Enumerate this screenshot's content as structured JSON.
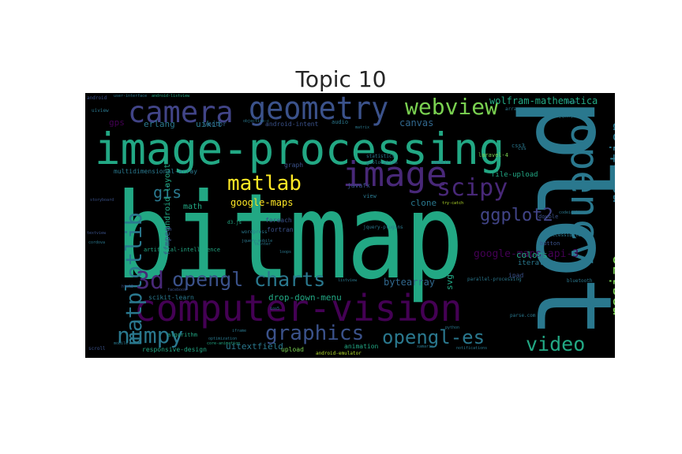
{
  "title": "Topic 10",
  "colors": {
    "background": "#000000",
    "palette": [
      "#440154",
      "#482878",
      "#3e4989",
      "#31688e",
      "#26828e",
      "#1f9e89",
      "#35b779",
      "#6ece58",
      "#b5de2b",
      "#fde725"
    ]
  },
  "words": [
    {
      "text": "bitmap",
      "color": "#22a884"
    },
    {
      "text": "plot",
      "color": "#2a788e"
    },
    {
      "text": "image-processing",
      "color": "#22a884"
    },
    {
      "text": "computer-vision",
      "color": "#440154"
    },
    {
      "text": "opencv",
      "color": "#2a788e"
    },
    {
      "text": "geometry",
      "color": "#3b528b"
    },
    {
      "text": "image",
      "color": "#482878"
    },
    {
      "text": "camera",
      "color": "#414487"
    },
    {
      "text": "matplotlib",
      "color": "#2a788e"
    },
    {
      "text": "webview",
      "color": "#7ad151"
    },
    {
      "text": "scipy",
      "color": "#482878"
    },
    {
      "text": "matlab",
      "color": "#fde725"
    },
    {
      "text": "3d",
      "color": "#482878"
    },
    {
      "text": "opengl",
      "color": "#3b528b"
    },
    {
      "text": "charts",
      "color": "#2a788e"
    },
    {
      "text": "graphics",
      "color": "#3b528b"
    },
    {
      "text": "opengl-es",
      "color": "#2a788e"
    },
    {
      "text": "numpy",
      "color": "#2a788e"
    },
    {
      "text": "video",
      "color": "#22a884"
    },
    {
      "text": "resize",
      "color": "#7ad151"
    },
    {
      "text": "rotation",
      "color": "#2a788e"
    },
    {
      "text": "ggplot2",
      "color": "#414487"
    },
    {
      "text": "gis",
      "color": "#2a788e"
    },
    {
      "text": "google-maps",
      "color": "#fde725"
    },
    {
      "text": "google-maps-api-3",
      "color": "#440154"
    },
    {
      "text": "wolfram-mathematica",
      "color": "#22a884"
    },
    {
      "text": "bytearray",
      "color": "#31688e"
    },
    {
      "text": "drop-down-menu",
      "color": "#22a884"
    },
    {
      "text": "uitextfield",
      "color": "#2a788e"
    },
    {
      "text": "svg",
      "color": "#22a884"
    },
    {
      "text": "colors",
      "color": "#22a884"
    },
    {
      "text": "erlang",
      "color": "#2a788e"
    },
    {
      "text": "uikit",
      "color": "#2a788e"
    },
    {
      "text": "canvas",
      "color": "#31688e"
    },
    {
      "text": "gps",
      "color": "#440154"
    },
    {
      "text": "vector",
      "color": "#31688e"
    },
    {
      "text": "android-intent",
      "color": "#3b528b"
    },
    {
      "text": "android-layout",
      "color": "#22a884"
    },
    {
      "text": "multidimensional-array",
      "color": "#2a788e"
    },
    {
      "text": "math",
      "color": "#22a884"
    },
    {
      "text": "clone",
      "color": "#2a788e"
    },
    {
      "text": "ffmpeg",
      "color": "#3b528b"
    },
    {
      "text": "artificial-intelligence",
      "color": "#22a884"
    },
    {
      "text": "responsive-design",
      "color": "#22a884"
    },
    {
      "text": "scikit-learn",
      "color": "#2a788e"
    },
    {
      "text": "upload",
      "color": "#7ad151"
    },
    {
      "text": "animation",
      "color": "#22a884"
    },
    {
      "text": "android-emulator",
      "color": "#b5de2b"
    },
    {
      "text": "file-upload",
      "color": "#22a884"
    },
    {
      "text": "iteration",
      "color": "#2a788e"
    },
    {
      "text": "layout",
      "color": "#2a788e"
    },
    {
      "text": "audio",
      "color": "#2a788e"
    },
    {
      "text": "graph",
      "color": "#3b528b"
    },
    {
      "text": "foreach",
      "color": "#3b528b"
    },
    {
      "text": "ipad",
      "color": "#3b528b"
    },
    {
      "text": "view",
      "color": "#2a788e"
    },
    {
      "text": "javafx",
      "color": "#3b528b"
    },
    {
      "text": "algorithm",
      "color": "#22a884"
    },
    {
      "text": "android",
      "color": "#3b528b"
    },
    {
      "text": "uiview",
      "color": "#2a788e"
    },
    {
      "text": "user-interface",
      "color": "#2a788e"
    },
    {
      "text": "android-listview",
      "color": "#22a884"
    },
    {
      "text": "webkit",
      "color": "#2a788e"
    },
    {
      "text": "css3",
      "color": "#2a788e"
    },
    {
      "text": "wordpress",
      "color": "#2a788e"
    },
    {
      "text": "fortran",
      "color": "#3b528b"
    },
    {
      "text": "jquery-ui",
      "color": "#2a788e"
    },
    {
      "text": "listview",
      "color": "#2a788e"
    },
    {
      "text": "storyboard",
      "color": "#3b528b"
    },
    {
      "text": "geolocation",
      "color": "#2a788e"
    },
    {
      "text": "statistics",
      "color": "#2a788e"
    },
    {
      "text": "laravel-4",
      "color": "#7ad151"
    },
    {
      "text": "arrays",
      "color": "#2a788e"
    },
    {
      "text": "button",
      "color": "#3b528b"
    },
    {
      "text": "accessibility",
      "color": "#2a788e"
    },
    {
      "text": "bluetooth",
      "color": "#2a788e"
    },
    {
      "text": "cordova",
      "color": "#2a788e"
    },
    {
      "text": "jquery-plugins",
      "color": "#2a788e"
    },
    {
      "text": "parallel-processing",
      "color": "#2a788e"
    },
    {
      "text": "double",
      "color": "#3b528b"
    },
    {
      "text": "parse.com",
      "color": "#2a788e"
    },
    {
      "text": "try-catch",
      "color": "#b5de2b"
    },
    {
      "text": "codeigniter",
      "color": "#2a788e"
    },
    {
      "text": "facebook",
      "color": "#3b528b"
    },
    {
      "text": "iframe",
      "color": "#2a788e"
    },
    {
      "text": "optimization",
      "color": "#2a788e"
    },
    {
      "text": "xamarin",
      "color": "#2a788e"
    },
    {
      "text": "scroll",
      "color": "#3b528b"
    },
    {
      "text": "notifications",
      "color": "#2a788e"
    },
    {
      "text": "mobile",
      "color": "#2a788e"
    },
    {
      "text": "objective-c",
      "color": "#2a788e"
    },
    {
      "text": "matrix",
      "color": "#2a788e"
    },
    {
      "text": "d3.js",
      "color": "#22a884"
    },
    {
      "text": "textview",
      "color": "#3b528b"
    },
    {
      "text": "python",
      "color": "#2a788e"
    },
    {
      "text": "jquery-mobile",
      "color": "#2a788e"
    },
    {
      "text": "core-animation",
      "color": "#22a884"
    },
    {
      "text": "boost",
      "color": "#2a788e"
    },
    {
      "text": "html5",
      "color": "#3b528b"
    },
    {
      "text": "ios5",
      "color": "#2a788e"
    },
    {
      "text": "loops",
      "color": "#2a788e"
    },
    {
      "text": "tkinter",
      "color": "#2a788e"
    },
    {
      "text": "css",
      "color": "#2a788e"
    }
  ]
}
